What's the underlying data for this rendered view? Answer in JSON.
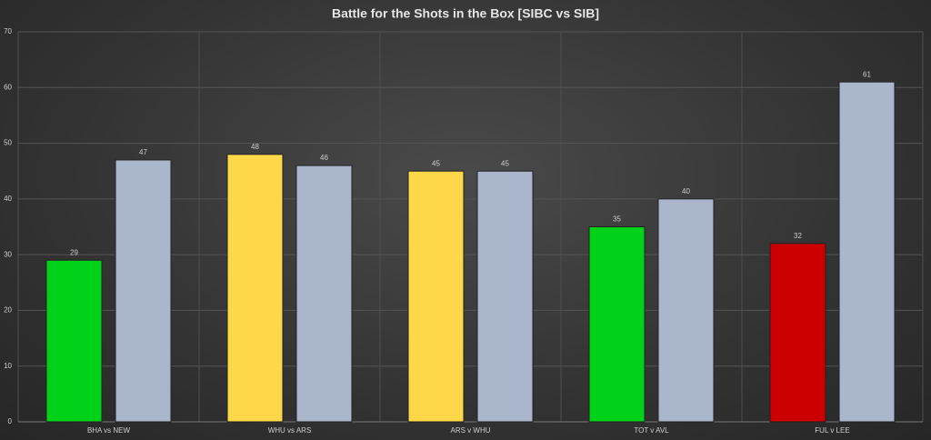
{
  "chart_data": {
    "type": "bar",
    "title": "Battle for the Shots in the Box [SIBC vs SIB]",
    "categories": [
      "BHA vs NEW",
      "WHU vs ARS",
      "ARS v WHU",
      "TOT v AVL",
      "FUL v LEE"
    ],
    "series": [
      {
        "colors": [
          "#00d21a",
          "#ffd84a",
          "#ffd84a",
          "#00d21a",
          "#cc0000"
        ],
        "values": [
          29,
          48,
          45,
          35,
          32
        ]
      },
      {
        "color": "#aab6cc",
        "values": [
          47,
          46,
          45,
          40,
          61
        ]
      }
    ],
    "ylim": [
      0,
      70
    ],
    "yticks": [
      0,
      10,
      20,
      30,
      40,
      50,
      60,
      70
    ],
    "grid": true
  }
}
